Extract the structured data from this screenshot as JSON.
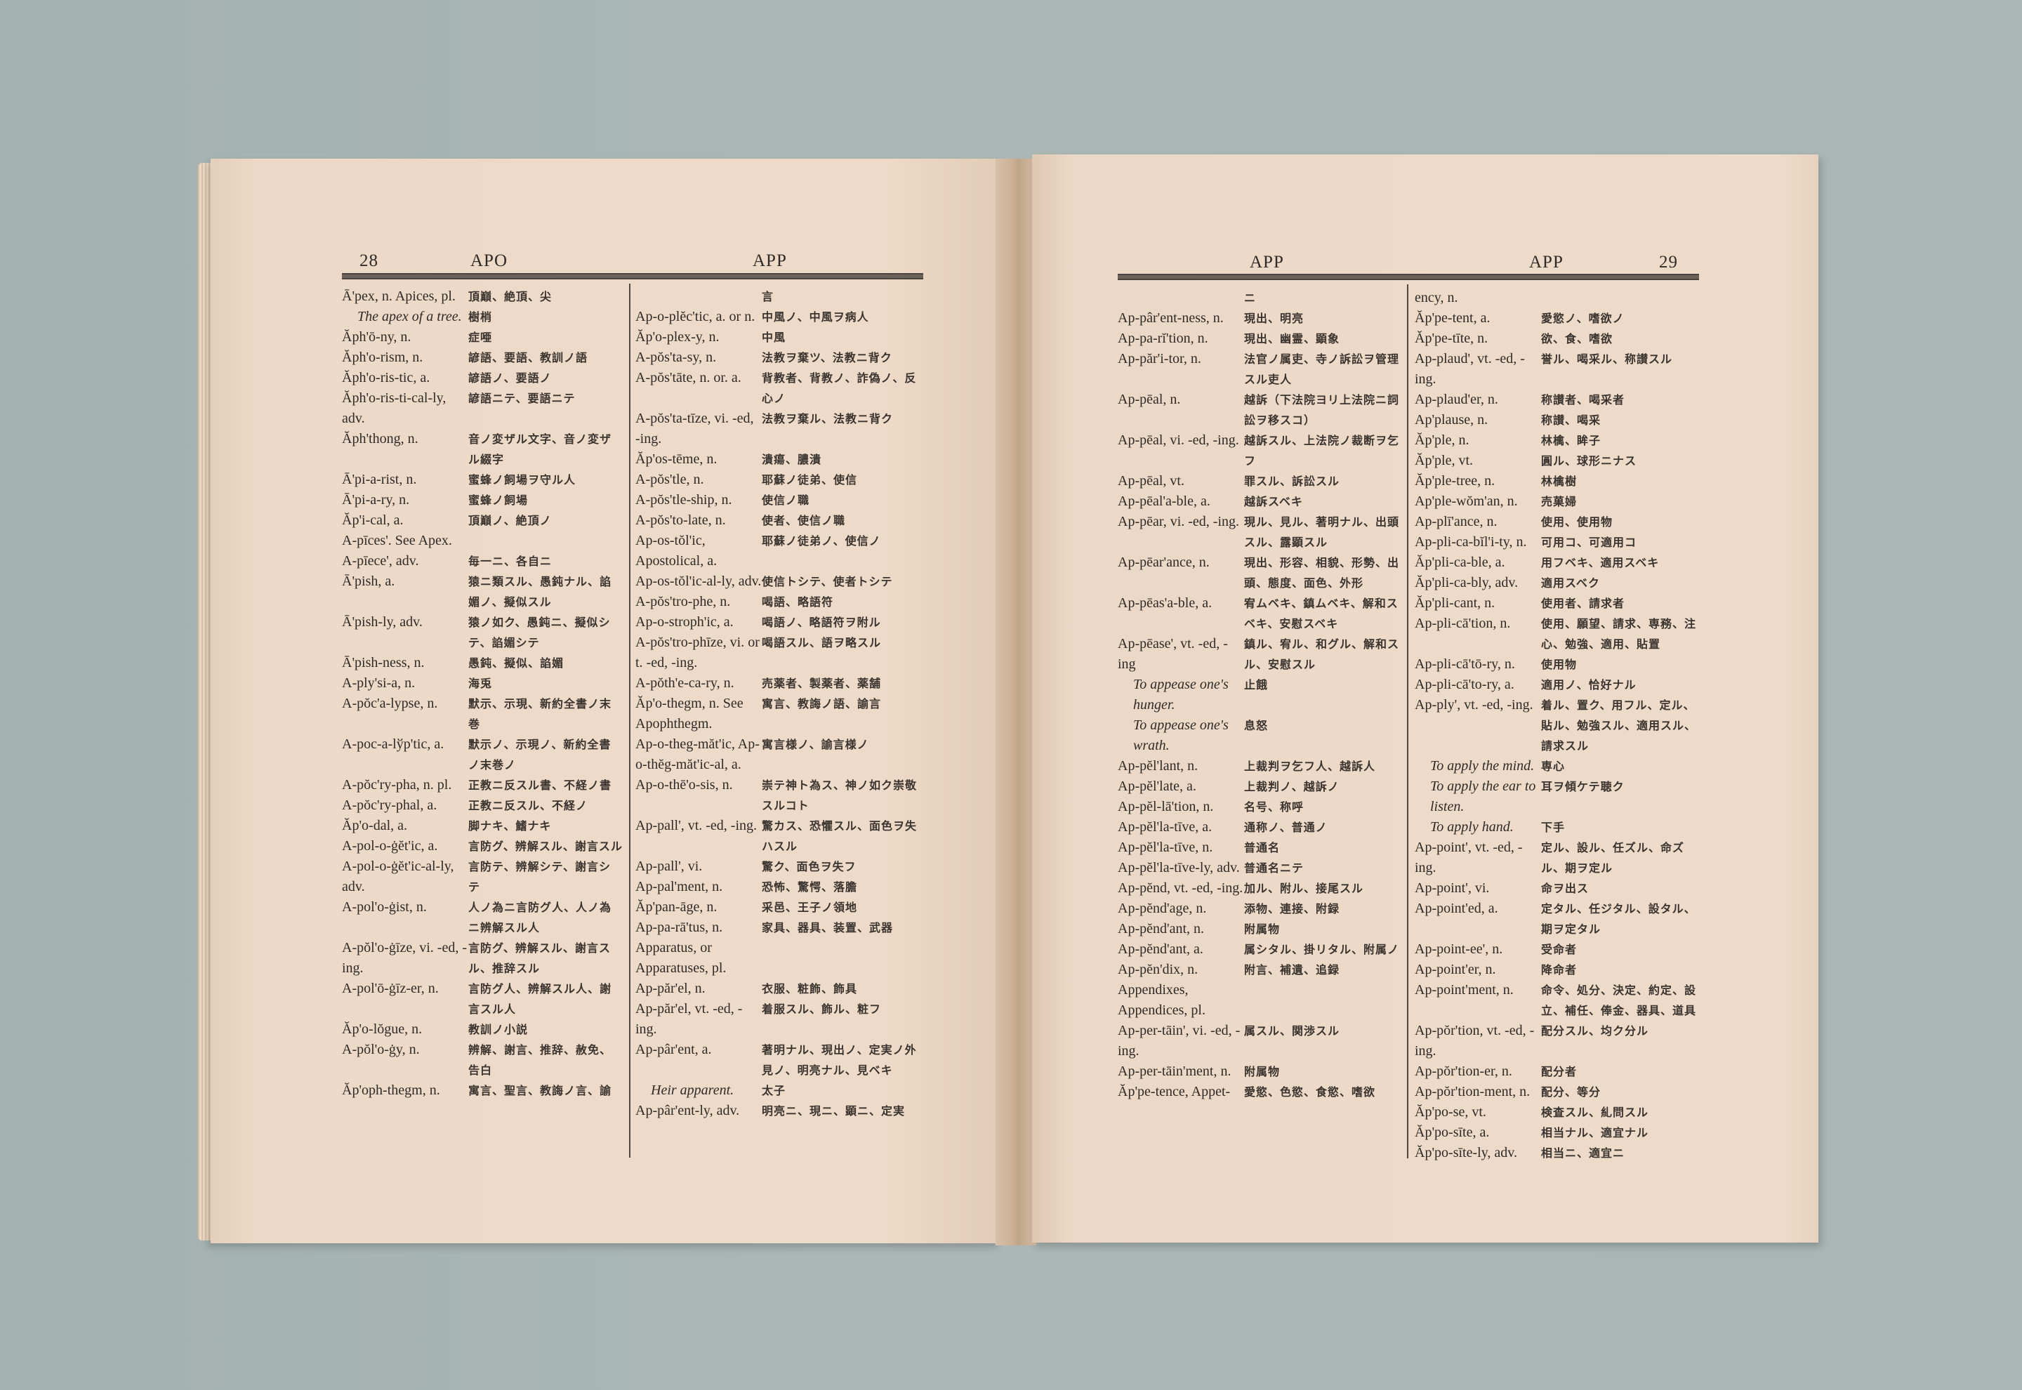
{
  "left_page": {
    "page_number": "28",
    "guide_left": "APO",
    "guide_right": "APP",
    "columns": [
      [
        {
          "head": "Ā'pex, n. Apices, pl.",
          "def": "頂巔、絶頂、尖"
        },
        {
          "head": "The apex of a tree.",
          "def": "樹梢",
          "italic": true
        },
        {
          "head": "Ăph'ō-ny, n.",
          "def": "症唖"
        },
        {
          "head": "Ăph'o-rism, n.",
          "def": "諺語、要語、教訓ノ語"
        },
        {
          "head": "Ăph'o-ris-tic, a.",
          "def": "諺語ノ、要語ノ"
        },
        {
          "head": "Ăph'o-ris-ti-cal-ly, adv.",
          "def": "諺語ニテ、要語ニテ"
        },
        {
          "head": "Ăph'thong, n.",
          "def": "音ノ変ザル文字、音ノ変ザル綴字"
        },
        {
          "head": "Ā'pi-a-rist, n.",
          "def": "蜜蜂ノ飼場ヲ守ル人"
        },
        {
          "head": "Ā'pi-a-ry, n.",
          "def": "蜜蜂ノ飼場"
        },
        {
          "head": "Ăp'i-cal, a.",
          "def": "頂巔ノ、絶頂ノ"
        },
        {
          "head": "A-pīces'. See Apex.",
          "def": ""
        },
        {
          "head": "A-pīece', adv.",
          "def": "毎一ニ、各自ニ"
        },
        {
          "head": "Ā'pish, a.",
          "def": "猿ニ類スル、愚鈍ナル、諂媚ノ、擬似スル"
        },
        {
          "head": "Ā'pish-ly, adv.",
          "def": "猿ノ如ク、愚鈍ニ、擬似シテ、諂媚シテ"
        },
        {
          "head": "Ā'pish-ness, n.",
          "def": "愚鈍、擬似、諂媚"
        },
        {
          "head": "A-ply'si-a, n.",
          "def": "海兎"
        },
        {
          "head": "A-pŏc'a-lypse, n.",
          "def": "默示、示現、新約全書ノ末巻"
        },
        {
          "head": "A-poc-a-lўp'tic, a.",
          "def": "默示ノ、示現ノ、新約全書ノ末巻ノ"
        },
        {
          "head": "A-pŏc'ry-pha, n. pl.",
          "def": "正教ニ反スル書、不経ノ書"
        },
        {
          "head": "A-pŏc'ry-phal, a.",
          "def": "正教ニ反スル、不経ノ"
        },
        {
          "head": "Ăp'o-dal, a.",
          "def": "脚ナキ、鰭ナキ"
        },
        {
          "head": "A-pol-o-ġĕt'ic, a.",
          "def": "言防グ、辨解スル、謝言スル"
        },
        {
          "head": "A-pol-o-ġĕt'ic-al-ly, adv.",
          "def": "言防テ、辨解シテ、謝言シテ"
        },
        {
          "head": "A-pol'o-ġist, n.",
          "def": "人ノ為ニ言防グ人、人ノ為ニ辨解スル人"
        },
        {
          "head": "A-pŏl'o-ġīze, vi. -ed, -ing.",
          "def": "言防グ、辨解スル、謝言スル、推辞スル"
        },
        {
          "head": "A-pol'ō-ġīz-er, n.",
          "def": "言防グ人、辨解スル人、謝言スル人"
        },
        {
          "head": "Ăp'o-lŏgue, n.",
          "def": "教訓ノ小説"
        },
        {
          "head": "A-pŏl'o-ġy, n.",
          "def": "辨解、謝言、推辞、赦免、告白"
        },
        {
          "head": "Ăp'oph-thegm, n.",
          "def": "寓言、聖言、教誨ノ言、諭"
        }
      ],
      [
        {
          "head": "",
          "def": "言"
        },
        {
          "head": "Ap-o-plĕc'tic, a. or n.",
          "def": "中風ノ、中風ヲ病人"
        },
        {
          "head": "Ăp'o-plex-y, n.",
          "def": "中風"
        },
        {
          "head": "A-pŏs'ta-sy, n.",
          "def": "法教ヲ棄ツ、法教ニ背ク"
        },
        {
          "head": "A-pŏs'tāte, n. or. a.",
          "def": "背教者、背教ノ、詐偽ノ、反心ノ"
        },
        {
          "head": "A-pŏs'ta-tīze, vi. -ed, -ing.",
          "def": "法教ヲ棄ル、法教ニ背ク"
        },
        {
          "head": "Ăp'os-tēme, n.",
          "def": "潰瘍、膿潰"
        },
        {
          "head": "A-pŏs'tle, n.",
          "def": "耶蘇ノ徒弟、使信"
        },
        {
          "head": "A-pŏs'tle-ship, n.",
          "def": "使信ノ職"
        },
        {
          "head": "A-pŏs'to-late, n.",
          "def": "使者、使信ノ職"
        },
        {
          "head": "Ap-os-tŏl'ic, Apostolical, a.",
          "def": "耶蘇ノ徒弟ノ、使信ノ"
        },
        {
          "head": "Ap-os-tŏl'ic-al-ly, adv.",
          "def": "使信トシテ、使者トシテ"
        },
        {
          "head": "A-pŏs'tro-phe, n.",
          "def": "喝語、略語符"
        },
        {
          "head": "Ap-o-stroph'ic, a.",
          "def": "喝語ノ、略語符ヲ附ル"
        },
        {
          "head": "A-pŏs'tro-phīze, vi. or t. -ed, -ing.",
          "def": "喝語スル、語ヲ略スル"
        },
        {
          "head": "A-pŏth'e-ca-ry, n.",
          "def": "売薬者、製薬者、薬舗"
        },
        {
          "head": "Ăp'o-thegm, n. See Apophthegm.",
          "def": "寓言、教誨ノ語、諭言"
        },
        {
          "head": "Ap-o-theg-măt'ic, Ap-o-thĕg-măt'ic-al, a.",
          "def": "寓言様ノ、諭言様ノ"
        },
        {
          "head": "Ap-o-thē'o-sis, n.",
          "def": "崇テ神ト為ス、神ノ如ク崇敬スルコト"
        },
        {
          "head": "Ap-pall', vt. -ed, -ing.",
          "def": "驚カス、恐懼スル、面色ヲ失ハスル"
        },
        {
          "head": "Ap-pall', vi.",
          "def": "驚ク、面色ヲ失フ"
        },
        {
          "head": "Ap-pal'ment, n.",
          "def": "恐怖、驚愕、落膽"
        },
        {
          "head": "Ăp'pan-āge, n.",
          "def": "采邑、王子ノ領地"
        },
        {
          "head": "Ap-pa-rā'tus, n. Apparatus, or Apparatuses, pl.",
          "def": "家具、器具、装置、武器"
        },
        {
          "head": "Ap-păr'el, n.",
          "def": "衣服、粧飾、飾具"
        },
        {
          "head": "Ap-păr'el, vt. -ed, -ing.",
          "def": "着服スル、飾ル、粧フ"
        },
        {
          "head": "Ap-pâr'ent, a.",
          "def": "著明ナル、現出ノ、定実ノ外見ノ、明亮ナル、見ベキ"
        },
        {
          "head": "Heir apparent.",
          "def": "太子",
          "italic": true
        },
        {
          "head": "Ap-pâr'ent-ly, adv.",
          "def": "明亮ニ、現ニ、顕ニ、定実"
        }
      ]
    ]
  },
  "right_page": {
    "page_number": "29",
    "guide_left": "APP",
    "guide_right": "APP",
    "columns": [
      [
        {
          "head": "",
          "def": "ニ"
        },
        {
          "head": "Ap-pâr'ent-ness, n.",
          "def": "現出、明亮"
        },
        {
          "head": "Ap-pa-rĭ'tion, n.",
          "def": "現出、幽霊、顕象"
        },
        {
          "head": "Ap-păr'i-tor, n.",
          "def": "法官ノ属吏、寺ノ訴訟ヲ管理スル吏人"
        },
        {
          "head": "Ap-pēal, n.",
          "def": "越訴（下法院ヨリ上法院ニ詞訟ヲ移スコ）"
        },
        {
          "head": "Ap-pēal, vi. -ed, -ing.",
          "def": "越訴スル、上法院ノ裁断ヲ乞フ"
        },
        {
          "head": "Ap-pēal, vt.",
          "def": "罪スル、訴訟スル"
        },
        {
          "head": "Ap-pēal'a-ble, a.",
          "def": "越訴スベキ"
        },
        {
          "head": "Ap-pēar, vi. -ed, -ing.",
          "def": "現ル、見ル、著明ナル、出頭スル、露顕スル"
        },
        {
          "head": "Ap-pēar'ance, n.",
          "def": "現出、形容、相貌、形勢、出頭、態度、面色、外形"
        },
        {
          "head": "Ap-pēas'a-ble, a.",
          "def": "宥ムベキ、鎮ムベキ、解和スベキ、安慰スベキ"
        },
        {
          "head": "Ap-pēase', vt. -ed, -ing",
          "def": "鎮ル、宥ル、和グル、解和スル、安慰スル"
        },
        {
          "head": "To appease one's hunger.",
          "def": "止餓",
          "italic": true
        },
        {
          "head": "To appease one's wrath.",
          "def": "息怒",
          "italic": true
        },
        {
          "head": "Ap-pĕl'lant, n.",
          "def": "上裁判ヲ乞フ人、越訴人"
        },
        {
          "head": "Ap-pĕl'late, a.",
          "def": "上裁判ノ、越訴ノ"
        },
        {
          "head": "Ap-pĕl-lā'tion, n.",
          "def": "名号、称呼"
        },
        {
          "head": "Ap-pĕl'la-tīve, a.",
          "def": "通称ノ、普通ノ"
        },
        {
          "head": "Ap-pĕl'la-tīve, n.",
          "def": "普通名"
        },
        {
          "head": "Ap-pĕl'la-tīve-ly, adv.",
          "def": "普通名ニテ"
        },
        {
          "head": "Ap-pĕnd, vt. -ed, -ing.",
          "def": "加ル、附ル、接尾スル"
        },
        {
          "head": "Ap-pĕnd'age, n.",
          "def": "添物、連接、附録"
        },
        {
          "head": "Ap-pĕnd'ant, n.",
          "def": "附属物"
        },
        {
          "head": "Ap-pĕnd'ant, a.",
          "def": "属シタル、掛リタル、附属ノ"
        },
        {
          "head": "Ap-pĕn'dix, n. Appendixes, Appendices, pl.",
          "def": "附言、補遺、追録"
        },
        {
          "head": "Ap-per-tāin', vi. -ed, -ing.",
          "def": "属スル、関渉スル"
        },
        {
          "head": "Ap-per-tāin'ment, n.",
          "def": "附属物"
        },
        {
          "head": "Ăp'pe-tence, Appet-",
          "def": "愛慾、色慾、食慾、嗜欲"
        }
      ],
      [
        {
          "head": "ency, n.",
          "def": ""
        },
        {
          "head": "Ăp'pe-tent, a.",
          "def": "愛慾ノ、嗜欲ノ"
        },
        {
          "head": "Ăp'pe-tīte, n.",
          "def": "欲、食、嗜欲"
        },
        {
          "head": "Ap-plaud', vt. -ed, -ing.",
          "def": "誉ル、喝采ル、称讃スル"
        },
        {
          "head": "Ap-plaud'er, n.",
          "def": "称讃者、喝采者"
        },
        {
          "head": "Ap'plause, n.",
          "def": "称讃、喝采"
        },
        {
          "head": "Ăp'ple, n.",
          "def": "林檎、眸子"
        },
        {
          "head": "Ăp'ple, vt.",
          "def": "圓ル、球形ニナス"
        },
        {
          "head": "Ăp'ple-tree, n.",
          "def": "林檎樹"
        },
        {
          "head": "Ap'ple-wŏm'an, n.",
          "def": "売菓婦"
        },
        {
          "head": "Ap-plī'ance, n.",
          "def": "使用、使用物"
        },
        {
          "head": "Ap-pli-ca-bĭl'i-ty, n.",
          "def": "可用コ、可適用コ"
        },
        {
          "head": "Ăp'pli-ca-ble, a.",
          "def": "用フベキ、適用スベキ"
        },
        {
          "head": "Ăp'pli-ca-bly, adv.",
          "def": "適用スベク"
        },
        {
          "head": "Ăp'pli-cant, n.",
          "def": "使用者、請求者"
        },
        {
          "head": "Ap-pli-cā'tion, n.",
          "def": "使用、願望、請求、専務、注心、勉強、適用、貼置"
        },
        {
          "head": "Ap-pli-cā'tō-ry, n.",
          "def": "使用物"
        },
        {
          "head": "Ap-pli-cā'to-ry, a.",
          "def": "適用ノ、恰好ナル"
        },
        {
          "head": "Ap-ply', vt. -ed, -ing.",
          "def": "着ル、置ク、用フル、定ル、貼ル、勉強スル、適用スル、請求スル"
        },
        {
          "head": "To apply the mind.",
          "def": "専心",
          "italic": true
        },
        {
          "head": "To apply the ear to listen.",
          "def": "耳ヲ傾ケテ聴ク",
          "italic": true
        },
        {
          "head": "To apply hand.",
          "def": "下手",
          "italic": true
        },
        {
          "head": "Ap-point', vt. -ed, -ing.",
          "def": "定ル、設ル、任ズル、命ズル、期ヲ定ル"
        },
        {
          "head": "Ap-point', vi.",
          "def": "命ヲ出ス"
        },
        {
          "head": "Ap-point'ed, a.",
          "def": "定タル、任ジタル、設タル、期ヲ定タル"
        },
        {
          "head": "Ap-point-ee', n.",
          "def": "受命者"
        },
        {
          "head": "Ap-point'er, n.",
          "def": "降命者"
        },
        {
          "head": "Ap-point'ment, n.",
          "def": "命令、処分、決定、約定、設立、補任、俸金、器具、道具"
        },
        {
          "head": "Ap-pŏr'tion, vt. -ed, -ing.",
          "def": "配分スル、均ク分ル"
        },
        {
          "head": "Ap-pŏr'tion-er, n.",
          "def": "配分者"
        },
        {
          "head": "Ap-pŏr'tion-ment, n.",
          "def": "配分、等分"
        },
        {
          "head": "Ăp'po-se, vt.",
          "def": "検査スル、糺問スル"
        },
        {
          "head": "Ăp'po-sīte, a.",
          "def": "相当ナル、適宜ナル"
        },
        {
          "head": "Ăp'po-sīte-ly, adv.",
          "def": "相当ニ、適宜ニ"
        }
      ]
    ]
  }
}
